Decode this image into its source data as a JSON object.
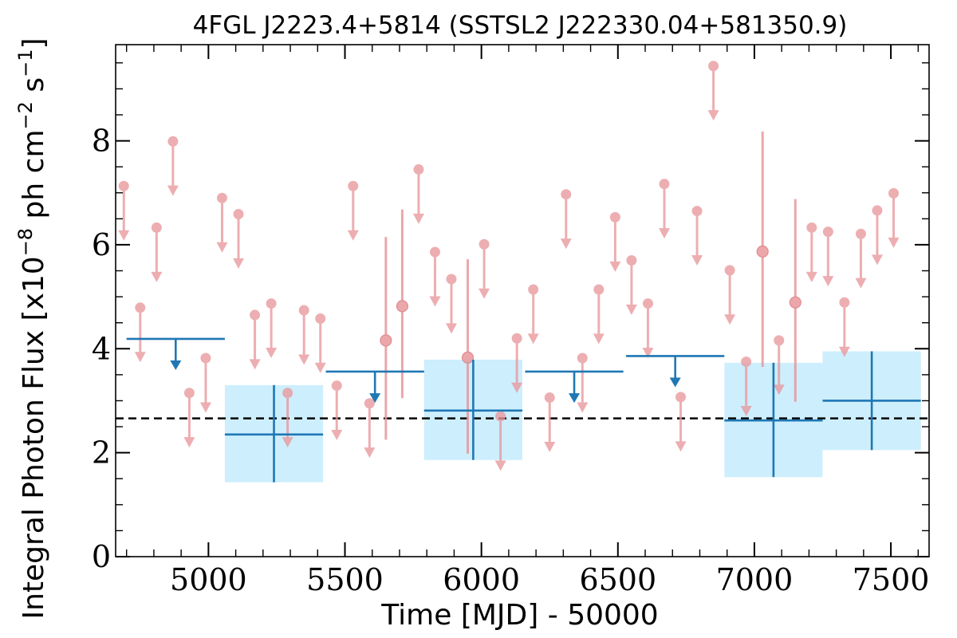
{
  "chart_data": {
    "type": "scatter",
    "title": "4FGL J2223.4+5814 (SSTSL2 J222330.04+581350.9)",
    "xlabel": "Time [MJD] - 50000",
    "ylabel_parts": [
      "Integral Photon Flux [x10",
      "−8",
      " ph cm",
      "−2",
      " s",
      "−1",
      "]"
    ],
    "xlim": [
      4660,
      7640
    ],
    "ylim": [
      0,
      9.85
    ],
    "xticks": [
      5000,
      5500,
      6000,
      6500,
      7000,
      7500
    ],
    "yticks": [
      0,
      2,
      4,
      6,
      8
    ],
    "xtick_labels": [
      "5000",
      "5500",
      "6000",
      "6500",
      "7000",
      "7500"
    ],
    "ytick_labels": [
      "0",
      "2",
      "4",
      "6",
      "8"
    ],
    "x_minor_step": 100,
    "y_minor_step": 0.5,
    "mean_flux": 2.66,
    "colors": {
      "short": "#e8989c",
      "long": "#1f77b4",
      "band": "#cdeefd",
      "mean": "#000000"
    },
    "short_bins_upper_limits": [
      {
        "x": 4690,
        "y": 7.13
      },
      {
        "x": 4750,
        "y": 4.79
      },
      {
        "x": 4810,
        "y": 6.33
      },
      {
        "x": 4870,
        "y": 7.99
      },
      {
        "x": 4930,
        "y": 3.15
      },
      {
        "x": 4990,
        "y": 3.82
      },
      {
        "x": 5050,
        "y": 6.9
      },
      {
        "x": 5110,
        "y": 6.59
      },
      {
        "x": 5170,
        "y": 4.65
      },
      {
        "x": 5230,
        "y": 4.87
      },
      {
        "x": 5290,
        "y": 3.15
      },
      {
        "x": 5350,
        "y": 4.74
      },
      {
        "x": 5410,
        "y": 4.58
      },
      {
        "x": 5470,
        "y": 3.29
      },
      {
        "x": 5530,
        "y": 7.13
      },
      {
        "x": 5590,
        "y": 2.95
      },
      {
        "x": 5770,
        "y": 7.45
      },
      {
        "x": 5830,
        "y": 5.86
      },
      {
        "x": 5890,
        "y": 5.34
      },
      {
        "x": 6010,
        "y": 6.01
      },
      {
        "x": 6070,
        "y": 2.7
      },
      {
        "x": 6130,
        "y": 4.2
      },
      {
        "x": 6190,
        "y": 5.14
      },
      {
        "x": 6250,
        "y": 3.06
      },
      {
        "x": 6310,
        "y": 6.97
      },
      {
        "x": 6370,
        "y": 3.82
      },
      {
        "x": 6430,
        "y": 5.14
      },
      {
        "x": 6490,
        "y": 6.53
      },
      {
        "x": 6550,
        "y": 5.7
      },
      {
        "x": 6610,
        "y": 4.87
      },
      {
        "x": 6670,
        "y": 7.17
      },
      {
        "x": 6730,
        "y": 3.07
      },
      {
        "x": 6790,
        "y": 6.65
      },
      {
        "x": 6850,
        "y": 9.44
      },
      {
        "x": 6910,
        "y": 5.51
      },
      {
        "x": 6970,
        "y": 3.75
      },
      {
        "x": 7090,
        "y": 4.16
      },
      {
        "x": 7210,
        "y": 6.33
      },
      {
        "x": 7270,
        "y": 6.25
      },
      {
        "x": 7330,
        "y": 4.89
      },
      {
        "x": 7390,
        "y": 6.21
      },
      {
        "x": 7450,
        "y": 6.66
      },
      {
        "x": 7510,
        "y": 6.99
      }
    ],
    "short_bins_detections": [
      {
        "x": 5650,
        "y": 4.16,
        "ylo": 2.25,
        "yhi": 6.15
      },
      {
        "x": 5710,
        "y": 4.82,
        "ylo": 3.05,
        "yhi": 6.68
      },
      {
        "x": 5950,
        "y": 3.83,
        "ylo": 1.98,
        "yhi": 5.72
      },
      {
        "x": 7030,
        "y": 5.87,
        "ylo": 3.65,
        "yhi": 8.18
      },
      {
        "x": 7150,
        "y": 4.89,
        "ylo": 2.98,
        "yhi": 6.88
      }
    ],
    "long_bins_upper_limits": [
      {
        "x0": 4700,
        "x1": 5060,
        "y": 4.19
      },
      {
        "x0": 5430,
        "x1": 5790,
        "y": 3.56
      },
      {
        "x0": 6160,
        "x1": 6520,
        "y": 3.56
      },
      {
        "x0": 6530,
        "x1": 6890,
        "y": 3.86
      }
    ],
    "long_bins_detections": [
      {
        "x0": 5060,
        "x1": 5420,
        "y": 2.35,
        "ylo": 1.43,
        "yhi": 3.3
      },
      {
        "x0": 5790,
        "x1": 6150,
        "y": 2.81,
        "ylo": 1.86,
        "yhi": 3.79
      },
      {
        "x0": 6890,
        "x1": 7250,
        "y": 2.62,
        "ylo": 1.53,
        "yhi": 3.73
      },
      {
        "x0": 7250,
        "x1": 7610,
        "y": 3.0,
        "ylo": 2.05,
        "yhi": 3.95
      }
    ]
  }
}
